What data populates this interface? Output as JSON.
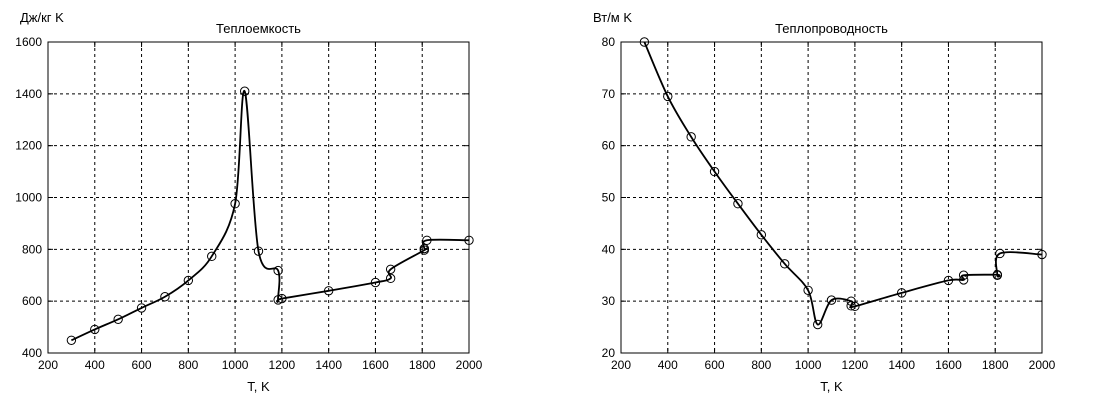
{
  "chart_data": [
    {
      "type": "line",
      "title": "Теплоемкость",
      "xlabel": "T, K",
      "ylabel": "Дж/кг K",
      "xlim": [
        200,
        2000
      ],
      "ylim": [
        400,
        1600
      ],
      "xticks": [
        200,
        400,
        600,
        800,
        1000,
        1200,
        1400,
        1600,
        1800,
        2000
      ],
      "yticks": [
        400,
        600,
        800,
        1000,
        1200,
        1400,
        1600
      ],
      "grid": true,
      "series": [
        {
          "x": [
            300,
            400,
            500,
            600,
            700,
            800,
            900,
            1000,
            1041,
            1100,
            1184,
            1184,
            1200,
            1400,
            1600,
            1665,
            1665,
            1809,
            1809,
            1820,
            2000
          ],
          "y": [
            449,
            491,
            530,
            574,
            617,
            680,
            773,
            976,
            1410,
            793,
            718,
            605,
            610,
            640,
            672,
            688,
            723,
            797,
            803,
            835,
            835
          ]
        }
      ]
    },
    {
      "type": "line",
      "title": "Теплопроводность",
      "xlabel": "T, K",
      "ylabel": "Вт/м K",
      "xlim": [
        200,
        2000
      ],
      "ylim": [
        20,
        80
      ],
      "xticks": [
        200,
        400,
        600,
        800,
        1000,
        1200,
        1400,
        1600,
        1800,
        2000
      ],
      "yticks": [
        20,
        30,
        40,
        50,
        60,
        70,
        80
      ],
      "grid": true,
      "series": [
        {
          "x": [
            300,
            400,
            500,
            600,
            700,
            800,
            900,
            1000,
            1041,
            1100,
            1184,
            1184,
            1200,
            1400,
            1600,
            1665,
            1665,
            1809,
            1809,
            1820,
            2000
          ],
          "y": [
            80,
            69.5,
            61.7,
            55,
            48.8,
            42.8,
            37.2,
            32.1,
            25.5,
            30.2,
            30.0,
            29.1,
            29.0,
            31.6,
            34.0,
            34.1,
            35.0,
            35.1,
            35.0,
            39.2,
            39.0
          ]
        }
      ]
    }
  ]
}
